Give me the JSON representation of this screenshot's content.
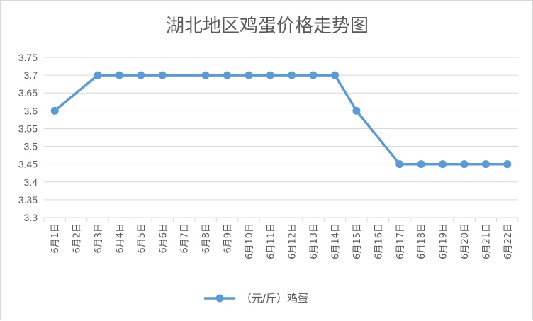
{
  "chart_data": {
    "type": "line",
    "title": "湖北地区鸡蛋价格走势图",
    "categories": [
      "6月1日",
      "6月2日",
      "6月3日",
      "6月4日",
      "6月5日",
      "6月6日",
      "6月7日",
      "6月8日",
      "6月9日",
      "6月10日",
      "6月11日",
      "6月12日",
      "6月13日",
      "6月14日",
      "6月15日",
      "6月16日",
      "6月17日",
      "6月18日",
      "6月19日",
      "6月20日",
      "6月21日",
      "6月22日"
    ],
    "series": [
      {
        "name": "（元/斤）鸡蛋",
        "color": "#5b9bd5",
        "values": [
          3.6,
          null,
          3.7,
          3.7,
          3.7,
          3.7,
          null,
          3.7,
          3.7,
          3.7,
          3.7,
          3.7,
          3.7,
          3.7,
          3.6,
          null,
          3.45,
          3.45,
          3.45,
          3.45,
          3.45,
          3.45
        ]
      }
    ],
    "ylim": [
      3.3,
      3.75
    ],
    "yticks": [
      "3.75",
      "3.7",
      "3.65",
      "3.6",
      "3.55",
      "3.5",
      "3.45",
      "3.4",
      "3.35",
      "3.3"
    ],
    "grid": true,
    "legend": "bottom",
    "xlabel": "",
    "ylabel": ""
  }
}
